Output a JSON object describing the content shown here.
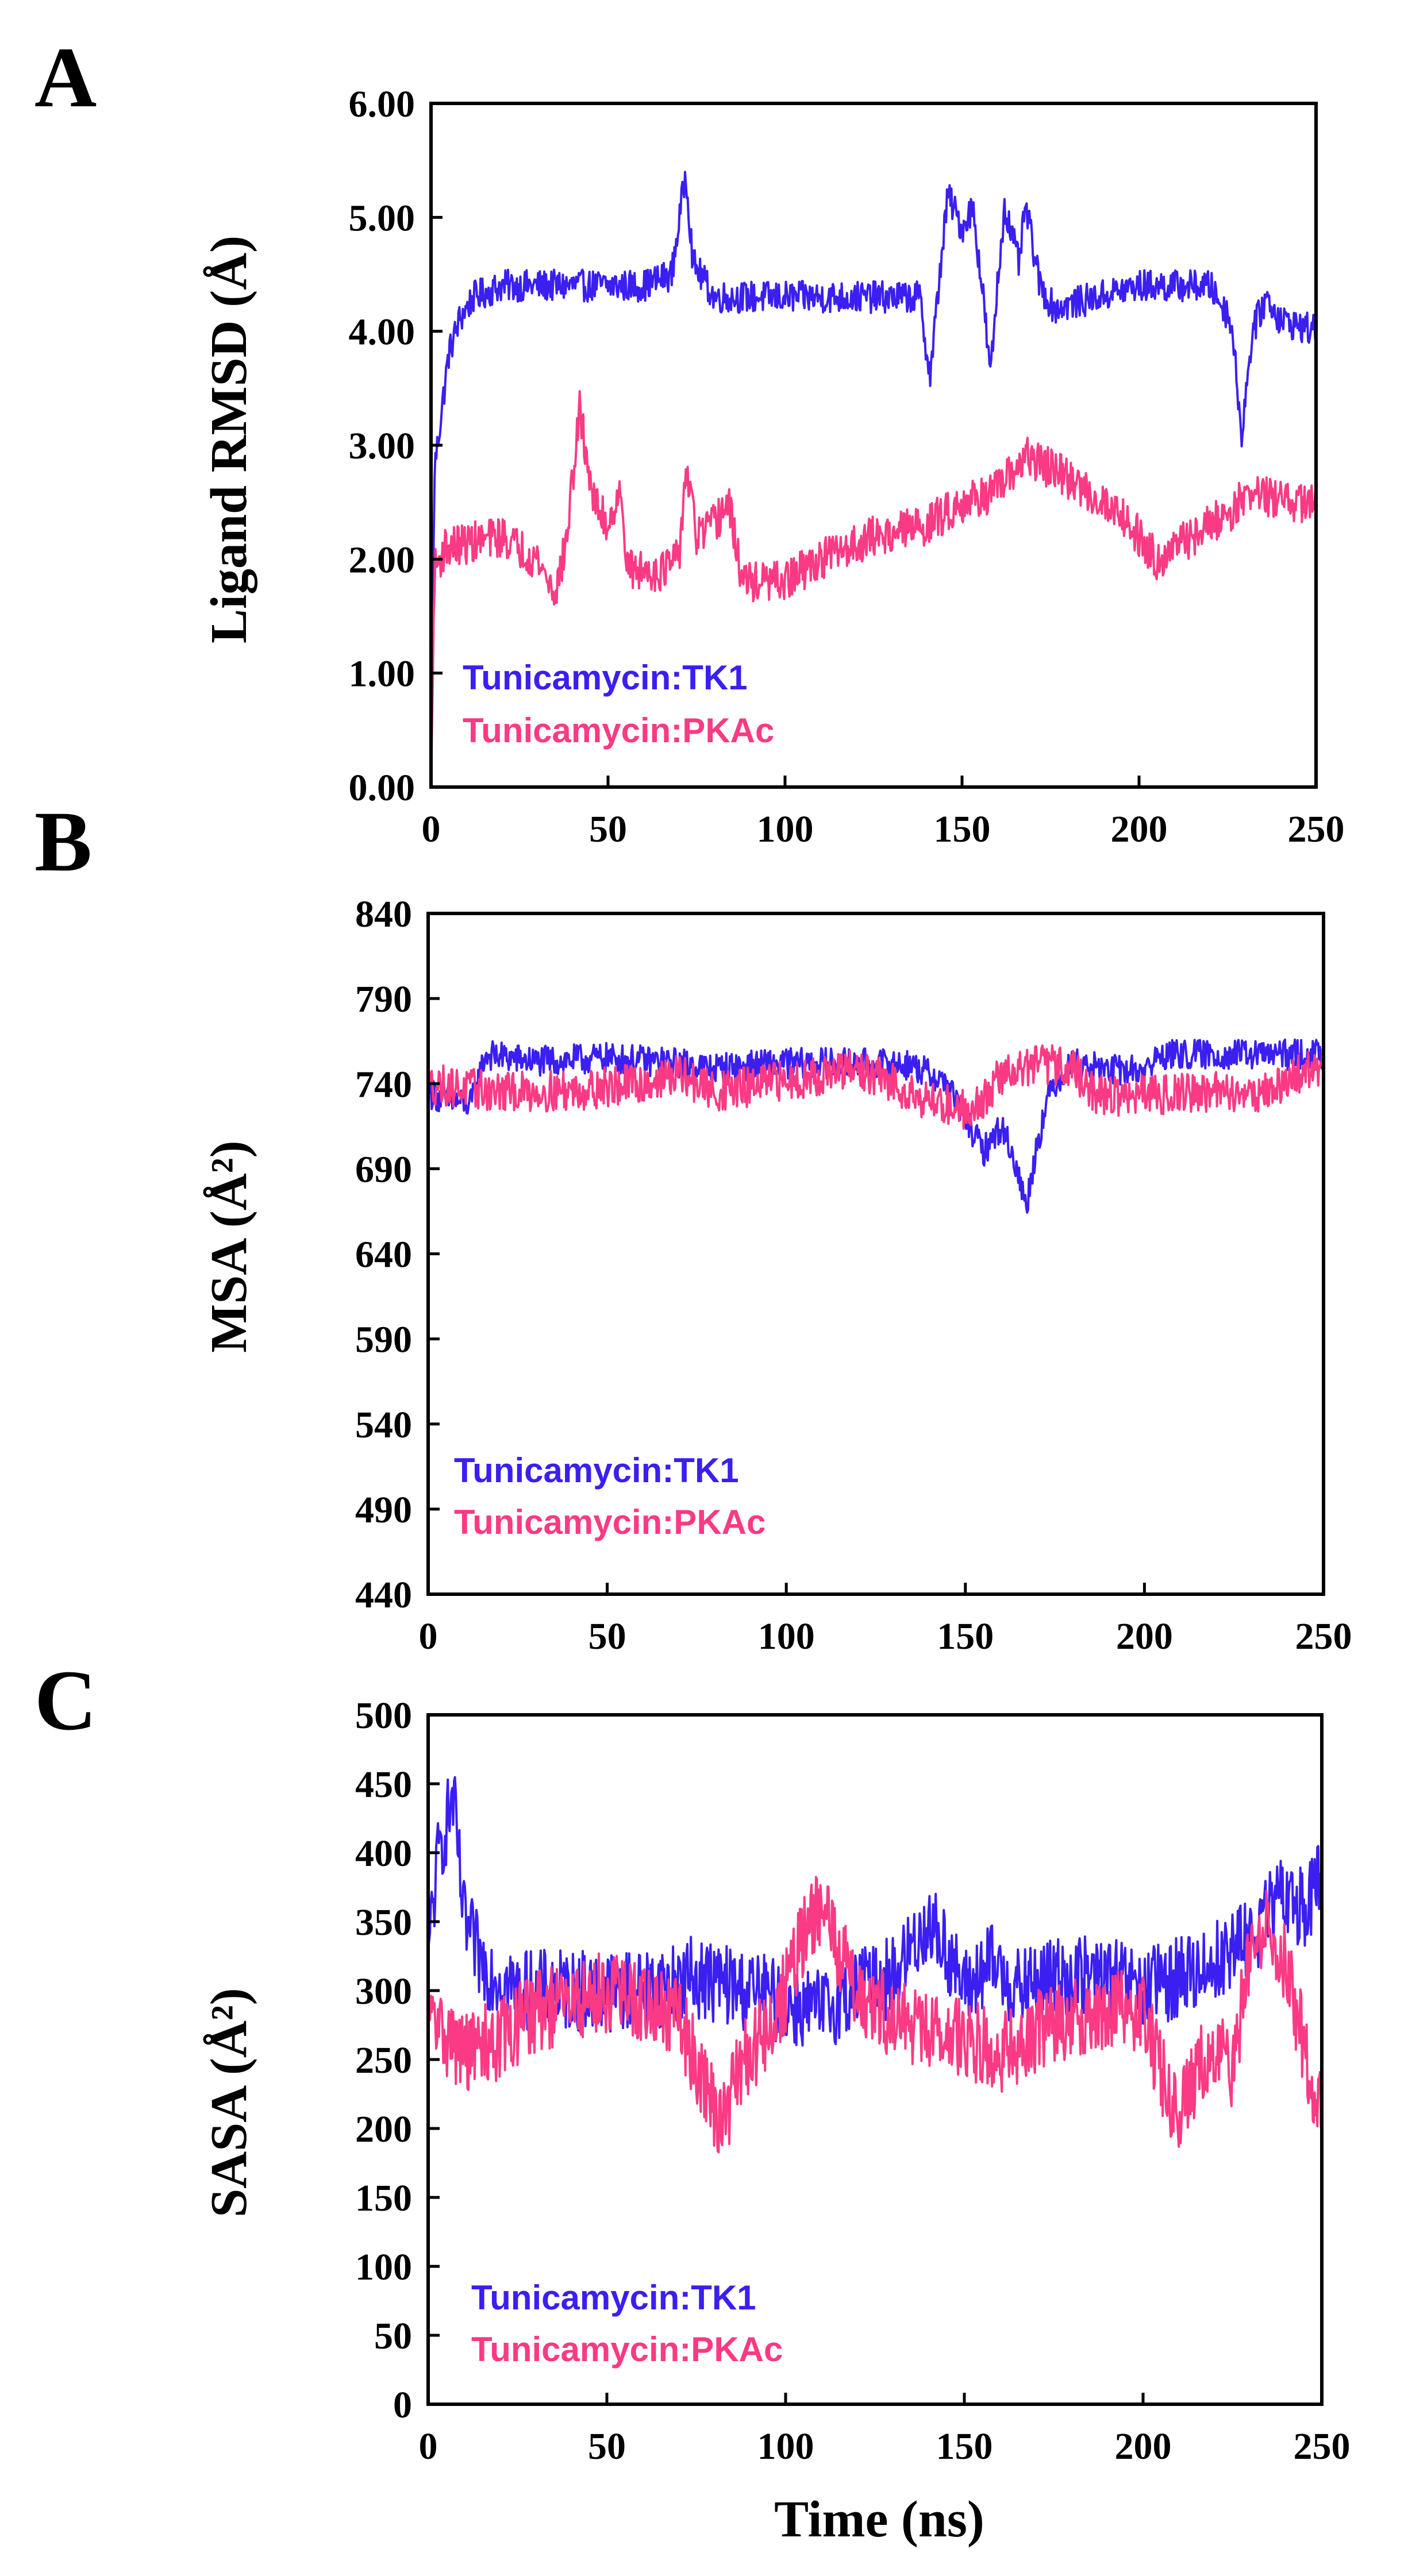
{
  "chart_data": [
    {
      "panel": "A",
      "type": "line",
      "xlabel": "",
      "ylabel": "Ligand RMSD (Å)",
      "xlim": [
        0,
        250
      ],
      "ylim": [
        0,
        6
      ],
      "xticks": [
        "0",
        "50",
        "100",
        "150",
        "200",
        "250"
      ],
      "yticks": [
        "0.00",
        "1.00",
        "2.00",
        "3.00",
        "4.00",
        "5.00",
        "6.00"
      ],
      "legend": {
        "placement": "bottom-left"
      },
      "series": [
        {
          "name": "Tunicamycin:TK1",
          "color": "#3a1ff0",
          "noise": 0.14,
          "points": [
            [
              0,
              0.0
            ],
            [
              1,
              2.8
            ],
            [
              3,
              3.3
            ],
            [
              5,
              3.8
            ],
            [
              8,
              4.1
            ],
            [
              12,
              4.3
            ],
            [
              20,
              4.4
            ],
            [
              40,
              4.4
            ],
            [
              60,
              4.4
            ],
            [
              68,
              4.5
            ],
            [
              72,
              5.4
            ],
            [
              74,
              4.6
            ],
            [
              80,
              4.3
            ],
            [
              100,
              4.3
            ],
            [
              120,
              4.3
            ],
            [
              138,
              4.3
            ],
            [
              141,
              3.6
            ],
            [
              144,
              4.6
            ],
            [
              146,
              5.2
            ],
            [
              150,
              4.9
            ],
            [
              153,
              5.1
            ],
            [
              156,
              4.3
            ],
            [
              158,
              3.6
            ],
            [
              160,
              4.4
            ],
            [
              162,
              5.1
            ],
            [
              166,
              4.6
            ],
            [
              168,
              5.1
            ],
            [
              172,
              4.4
            ],
            [
              176,
              4.2
            ],
            [
              200,
              4.4
            ],
            [
              220,
              4.4
            ],
            [
              226,
              4.1
            ],
            [
              229,
              3.1
            ],
            [
              232,
              4.0
            ],
            [
              236,
              4.3
            ],
            [
              240,
              4.1
            ],
            [
              250,
              4.0
            ]
          ]
        },
        {
          "name": "Tunicamycin:PKAc",
          "color": "#fa3a84",
          "noise": 0.18,
          "points": [
            [
              0,
              0.0
            ],
            [
              1,
              1.9
            ],
            [
              4,
              2.1
            ],
            [
              20,
              2.2
            ],
            [
              30,
              2.0
            ],
            [
              35,
              1.7
            ],
            [
              38,
              2.1
            ],
            [
              42,
              3.3
            ],
            [
              46,
              2.5
            ],
            [
              50,
              2.3
            ],
            [
              53,
              2.6
            ],
            [
              56,
              1.9
            ],
            [
              65,
              1.9
            ],
            [
              70,
              2.0
            ],
            [
              72,
              2.8
            ],
            [
              75,
              2.2
            ],
            [
              80,
              2.3
            ],
            [
              84,
              2.5
            ],
            [
              88,
              1.8
            ],
            [
              100,
              1.8
            ],
            [
              110,
              2.0
            ],
            [
              125,
              2.2
            ],
            [
              140,
              2.3
            ],
            [
              150,
              2.5
            ],
            [
              160,
              2.6
            ],
            [
              168,
              2.9
            ],
            [
              175,
              2.8
            ],
            [
              185,
              2.6
            ],
            [
              195,
              2.4
            ],
            [
              205,
              2.0
            ],
            [
              215,
              2.2
            ],
            [
              225,
              2.4
            ],
            [
              232,
              2.6
            ],
            [
              240,
              2.5
            ],
            [
              250,
              2.5
            ]
          ]
        }
      ]
    },
    {
      "panel": "B",
      "type": "line",
      "xlabel": "",
      "ylabel": "MSA (Å²)",
      "xlim": [
        0,
        250
      ],
      "ylim": [
        440,
        840
      ],
      "xticks": [
        "0",
        "50",
        "100",
        "150",
        "200",
        "250"
      ],
      "yticks": [
        "440",
        "490",
        "540",
        "590",
        "640",
        "690",
        "740",
        "790",
        "840"
      ],
      "legend": {
        "placement": "bottom-left"
      },
      "series": [
        {
          "name": "Tunicamycin:TK1",
          "color": "#3a1ff0",
          "noise": 9,
          "points": [
            [
              0,
              735
            ],
            [
              5,
              730
            ],
            [
              12,
              728
            ],
            [
              16,
              757
            ],
            [
              30,
              753
            ],
            [
              50,
              755
            ],
            [
              70,
              752
            ],
            [
              80,
              749
            ],
            [
              100,
              752
            ],
            [
              120,
              752
            ],
            [
              135,
              751
            ],
            [
              145,
              740
            ],
            [
              150,
              720
            ],
            [
              155,
              700
            ],
            [
              160,
              715
            ],
            [
              163,
              700
            ],
            [
              167,
              668
            ],
            [
              170,
              705
            ],
            [
              174,
              738
            ],
            [
              180,
              752
            ],
            [
              190,
              748
            ],
            [
              200,
              748
            ],
            [
              205,
              757
            ],
            [
              220,
              757
            ],
            [
              240,
              757
            ],
            [
              250,
              757
            ]
          ]
        },
        {
          "name": "Tunicamycin:PKAc",
          "color": "#fa3a84",
          "noise": 12,
          "points": [
            [
              0,
              740
            ],
            [
              20,
              735
            ],
            [
              40,
              736
            ],
            [
              60,
              740
            ],
            [
              70,
              745
            ],
            [
              80,
              735
            ],
            [
              90,
              738
            ],
            [
              100,
              742
            ],
            [
              110,
              745
            ],
            [
              120,
              748
            ],
            [
              130,
              740
            ],
            [
              140,
              730
            ],
            [
              150,
              725
            ],
            [
              155,
              730
            ],
            [
              160,
              745
            ],
            [
              170,
              752
            ],
            [
              180,
              750
            ],
            [
              185,
              735
            ],
            [
              195,
              732
            ],
            [
              210,
              735
            ],
            [
              225,
              735
            ],
            [
              235,
              735
            ],
            [
              245,
              748
            ],
            [
              250,
              750
            ]
          ]
        }
      ]
    },
    {
      "panel": "C",
      "type": "line",
      "xlabel": "Time (ns)",
      "ylabel": "SASA (Å²)",
      "xlim": [
        0,
        250
      ],
      "ylim": [
        0,
        500
      ],
      "xticks": [
        "0",
        "50",
        "100",
        "150",
        "200",
        "250"
      ],
      "yticks": [
        "0",
        "50",
        "100",
        "150",
        "200",
        "250",
        "300",
        "350",
        "400",
        "450",
        "500"
      ],
      "legend": {
        "placement": "bottom-left"
      },
      "series": [
        {
          "name": "Tunicamycin:TK1",
          "color": "#3a1ff0",
          "noise": 30,
          "points": [
            [
              0,
              330
            ],
            [
              3,
              400
            ],
            [
              7,
              440
            ],
            [
              10,
              350
            ],
            [
              15,
              320
            ],
            [
              25,
              300
            ],
            [
              40,
              300
            ],
            [
              60,
              300
            ],
            [
              75,
              310
            ],
            [
              90,
              300
            ],
            [
              100,
              290
            ],
            [
              110,
              285
            ],
            [
              120,
              300
            ],
            [
              130,
              310
            ],
            [
              140,
              350
            ],
            [
              145,
              330
            ],
            [
              150,
              300
            ],
            [
              158,
              320
            ],
            [
              165,
              300
            ],
            [
              175,
              310
            ],
            [
              190,
              310
            ],
            [
              200,
              300
            ],
            [
              210,
              310
            ],
            [
              220,
              320
            ],
            [
              230,
              340
            ],
            [
              240,
              370
            ],
            [
              245,
              360
            ],
            [
              250,
              380
            ]
          ]
        },
        {
          "name": "Tunicamycin:PKAc",
          "color": "#fa3a84",
          "noise": 30,
          "points": [
            [
              0,
              280
            ],
            [
              10,
              255
            ],
            [
              20,
              265
            ],
            [
              30,
              285
            ],
            [
              40,
              290
            ],
            [
              50,
              300
            ],
            [
              60,
              290
            ],
            [
              70,
              280
            ],
            [
              78,
              230
            ],
            [
              82,
              200
            ],
            [
              88,
              250
            ],
            [
              95,
              270
            ],
            [
              100,
              300
            ],
            [
              105,
              340
            ],
            [
              110,
              360
            ],
            [
              115,
              330
            ],
            [
              120,
              300
            ],
            [
              130,
              280
            ],
            [
              140,
              270
            ],
            [
              150,
              265
            ],
            [
              160,
              255
            ],
            [
              170,
              270
            ],
            [
              180,
              280
            ],
            [
              190,
              285
            ],
            [
              200,
              285
            ],
            [
              205,
              240
            ],
            [
              210,
              210
            ],
            [
              215,
              240
            ],
            [
              220,
              260
            ],
            [
              225,
              240
            ],
            [
              230,
              330
            ],
            [
              235,
              350
            ],
            [
              240,
              320
            ],
            [
              245,
              260
            ],
            [
              248,
              220
            ],
            [
              250,
              225
            ]
          ]
        }
      ]
    }
  ]
}
